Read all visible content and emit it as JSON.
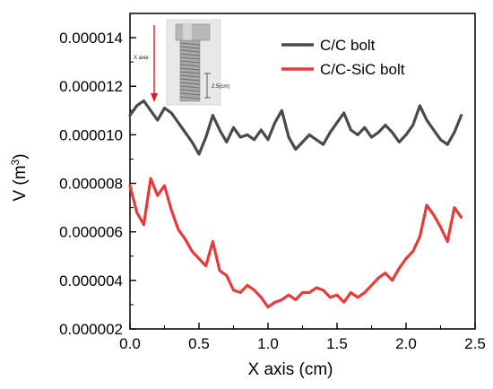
{
  "chart_data": {
    "type": "line",
    "xlabel": "X axis (cm)",
    "ylabel_main": "V (m",
    "ylabel_sup": "3",
    "ylabel_close": ")",
    "xlim": [
      0.0,
      2.5
    ],
    "ylim": [
      2e-06,
      1.5e-05
    ],
    "xticks": [
      "0.0",
      "0.5",
      "1.0",
      "1.5",
      "2.0",
      "2.5"
    ],
    "xtick_values": [
      0.0,
      0.5,
      1.0,
      1.5,
      2.0,
      2.5
    ],
    "yticks": [
      "0.000002",
      "0.000004",
      "0.000006",
      "0.000008",
      "0.000010",
      "0.000012",
      "0.000014"
    ],
    "ytick_values": [
      2e-06,
      4e-06,
      6e-06,
      8e-06,
      1e-05,
      1.2e-05,
      1.4e-05
    ],
    "legend_position": "top-right",
    "series": [
      {
        "name": "C/C bolt",
        "color": "#4a4a4a",
        "x": [
          0.0,
          0.05,
          0.1,
          0.15,
          0.2,
          0.25,
          0.3,
          0.35,
          0.4,
          0.45,
          0.5,
          0.55,
          0.6,
          0.65,
          0.7,
          0.75,
          0.8,
          0.85,
          0.9,
          0.95,
          1.0,
          1.05,
          1.1,
          1.15,
          1.2,
          1.25,
          1.3,
          1.35,
          1.4,
          1.45,
          1.5,
          1.55,
          1.6,
          1.65,
          1.7,
          1.75,
          1.8,
          1.85,
          1.9,
          1.95,
          2.0,
          2.05,
          2.1,
          2.15,
          2.2,
          2.25,
          2.3,
          2.35,
          2.4
        ],
        "values": [
          1.08e-05,
          1.12e-05,
          1.14e-05,
          1.1e-05,
          1.06e-05,
          1.11e-05,
          1.09e-05,
          1.05e-05,
          1.01e-05,
          9.7e-06,
          9.2e-06,
          9.9e-06,
          1.08e-05,
          1.02e-05,
          9.7e-06,
          1.03e-05,
          9.9e-06,
          1e-05,
          9.8e-06,
          1.02e-05,
          9.8e-06,
          1.05e-05,
          1.1e-05,
          9.9e-06,
          9.4e-06,
          9.7e-06,
          1e-05,
          9.8e-06,
          9.6e-06,
          1.01e-05,
          1.05e-05,
          1.09e-05,
          1.02e-05,
          1e-05,
          1.03e-05,
          9.9e-06,
          1.01e-05,
          1.04e-05,
          1.01e-05,
          9.7e-06,
          1e-05,
          1.04e-05,
          1.12e-05,
          1.06e-05,
          1.02e-05,
          9.8e-06,
          9.6e-06,
          1.01e-05,
          1.08e-05
        ]
      },
      {
        "name": "C/C-SiC bolt",
        "color": "#e83a3a",
        "x": [
          0.0,
          0.05,
          0.1,
          0.15,
          0.2,
          0.25,
          0.3,
          0.35,
          0.4,
          0.45,
          0.5,
          0.55,
          0.6,
          0.65,
          0.7,
          0.75,
          0.8,
          0.85,
          0.9,
          0.95,
          1.0,
          1.05,
          1.1,
          1.15,
          1.2,
          1.25,
          1.3,
          1.35,
          1.4,
          1.45,
          1.5,
          1.55,
          1.6,
          1.65,
          1.7,
          1.75,
          1.8,
          1.85,
          1.9,
          1.95,
          2.0,
          2.05,
          2.1,
          2.15,
          2.2,
          2.25,
          2.3,
          2.35,
          2.4
        ],
        "values": [
          7.9e-06,
          6.8e-06,
          6.3e-06,
          8.2e-06,
          7.5e-06,
          7.9e-06,
          6.9e-06,
          6.1e-06,
          5.7e-06,
          5.2e-06,
          4.9e-06,
          4.6e-06,
          5.6e-06,
          4.4e-06,
          4.2e-06,
          3.6e-06,
          3.5e-06,
          3.8e-06,
          3.6e-06,
          3.3e-06,
          2.9e-06,
          3.1e-06,
          3.2e-06,
          3.4e-06,
          3.2e-06,
          3.5e-06,
          3.5e-06,
          3.7e-06,
          3.6e-06,
          3.3e-06,
          3.4e-06,
          3.1e-06,
          3.5e-06,
          3.3e-06,
          3.5e-06,
          3.8e-06,
          4.1e-06,
          4.3e-06,
          4e-06,
          4.5e-06,
          4.9e-06,
          5.2e-06,
          5.8e-06,
          7.1e-06,
          6.7e-06,
          6.2e-06,
          5.6e-06,
          7e-06,
          6.6e-06
        ]
      }
    ],
    "inset": {
      "x_label": "X axie",
      "dimension_label": "2.5(cm)",
      "arrow_color": "#d62020"
    }
  }
}
